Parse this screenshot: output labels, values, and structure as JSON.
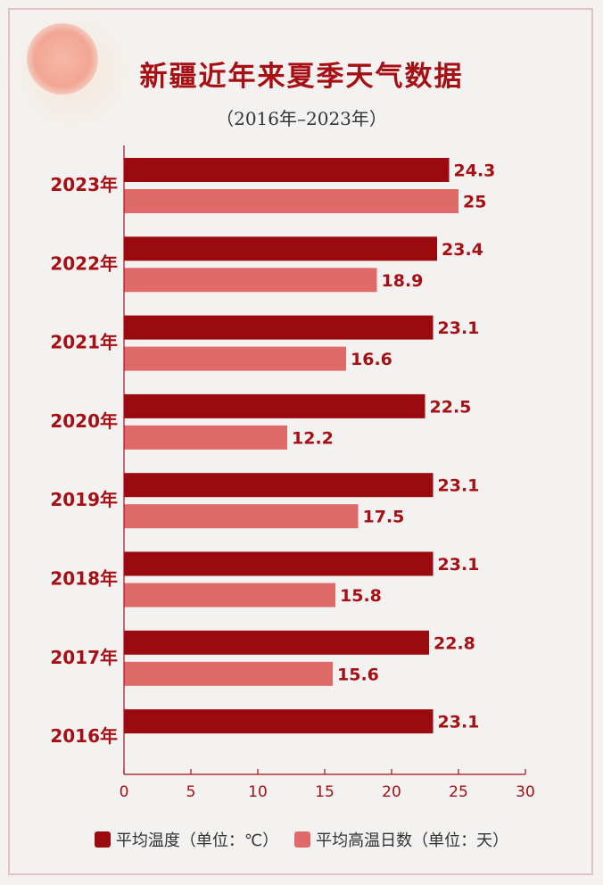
{
  "title": "新疆近年来夏季天气数据",
  "subtitle": "（2016年–2023年）",
  "colors": {
    "series_temp": "#9b0a0e",
    "series_days": "#e06a6a",
    "label": "#a60f14"
  },
  "legend": [
    {
      "label": "平均温度（单位：℃）",
      "color": "#9b0a0e"
    },
    {
      "label": "平均高温日数（单位：天）",
      "color": "#e06a6a"
    }
  ],
  "chart_data": {
    "type": "bar",
    "orientation": "horizontal",
    "categories": [
      "2023年",
      "2022年",
      "2021年",
      "2020年",
      "2019年",
      "2018年",
      "2017年",
      "2016年"
    ],
    "series": [
      {
        "name": "平均温度（单位：℃）",
        "values": [
          24.3,
          23.4,
          23.1,
          22.5,
          23.1,
          23.1,
          22.8,
          23.1
        ]
      },
      {
        "name": "平均高温日数（单位：天）",
        "values": [
          25,
          18.9,
          16.6,
          12.2,
          17.5,
          15.8,
          15.6,
          null
        ]
      }
    ],
    "value_labels": [
      [
        "24.3",
        "23.4",
        "23.1",
        "22.5",
        "23.1",
        "23.1",
        "22.8",
        "23.1"
      ],
      [
        "25",
        "18.9",
        "16.6",
        "12.2",
        "17.5",
        "15.8",
        "15.6",
        ""
      ]
    ],
    "xlim": [
      0,
      30
    ],
    "xticks": [
      "0",
      "5",
      "10",
      "15",
      "20",
      "25",
      "30"
    ],
    "legend_position": "bottom",
    "grid": false
  }
}
